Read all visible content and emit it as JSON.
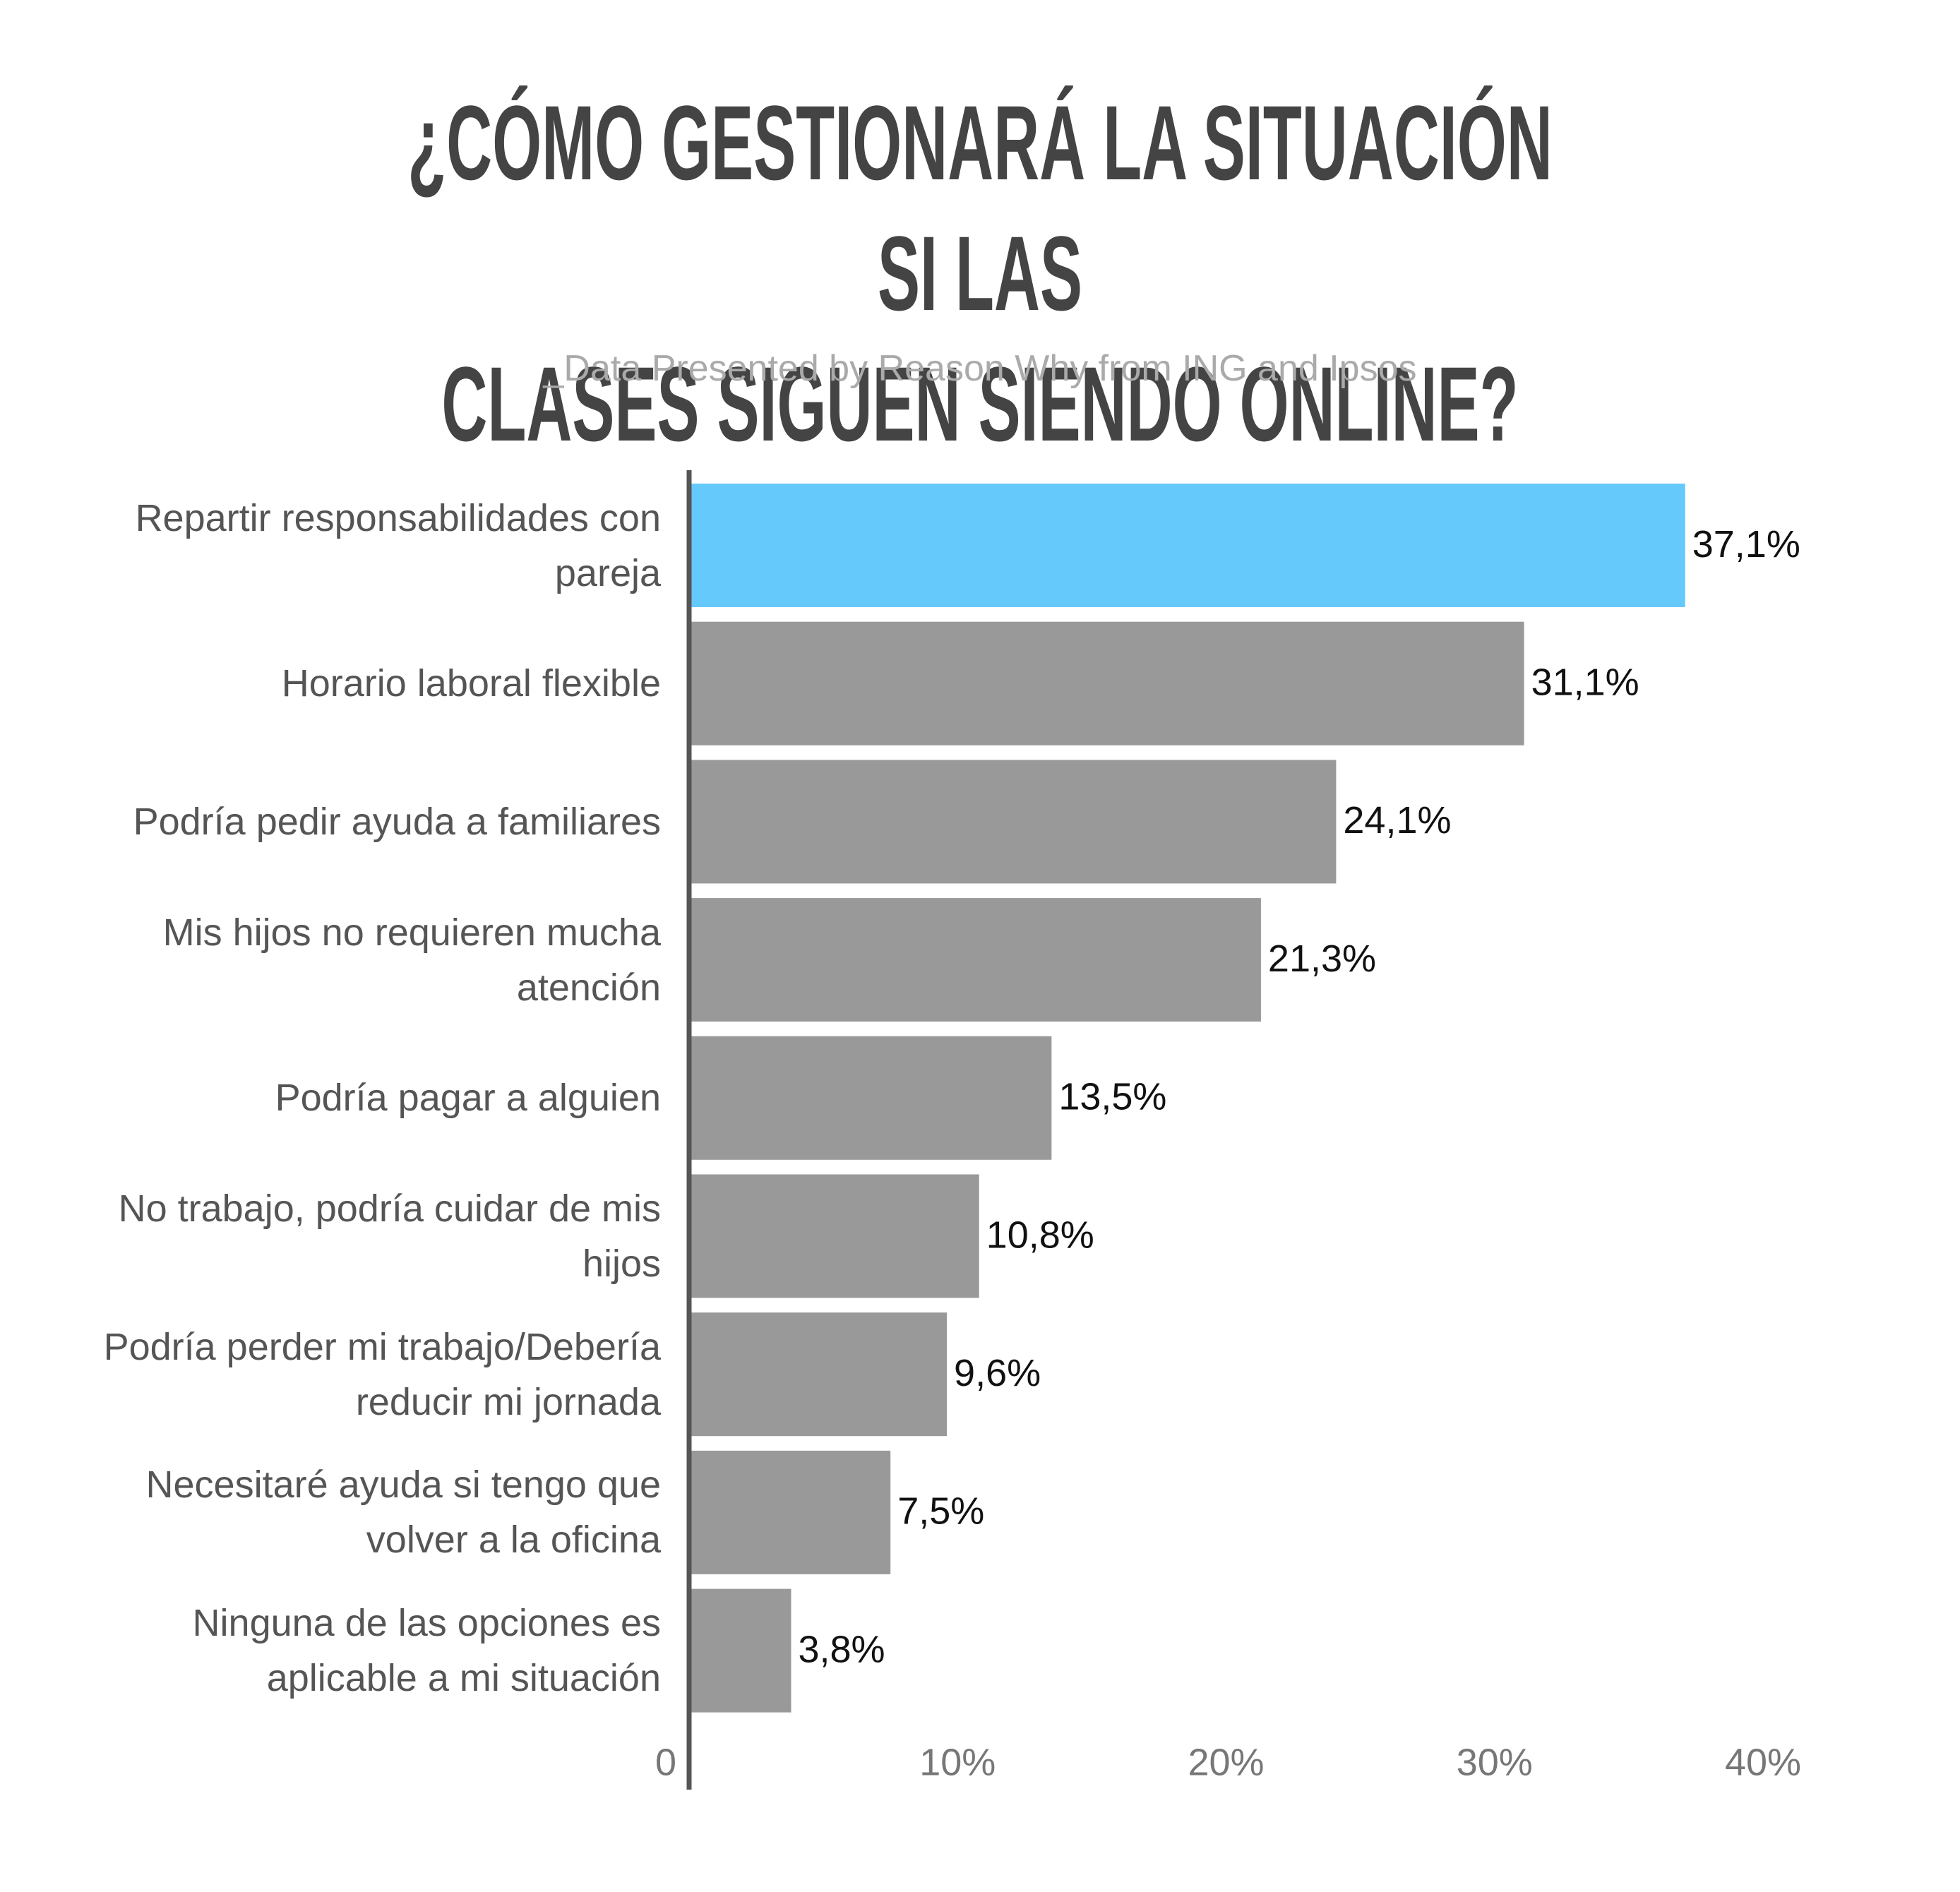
{
  "chart_data": {
    "type": "barh",
    "title": "¿CÓMO GESTIONARÁ LA SITUACIÓN SI LAS\nCLASES SIGUEN SIENDO ONLINE?",
    "subtitle": "_Data Presented by Reason Why from ING and Ipsos",
    "categories": [
      "Repartir responsabilidades con\npareja",
      "Horario laboral flexible",
      "Podría pedir ayuda a familiares",
      "Mis hijos no requieren mucha\natención",
      "Podría pagar a alguien",
      "No trabajo, podría cuidar de mis\nhijos",
      "Podría perder mi trabajo/Debería\nreducir mi jornada",
      "Necesitaré ayuda si tengo que\nvolver a la oficina",
      "Ninguna de las opciones es\naplicable a mi situación"
    ],
    "values": [
      37.1,
      31.1,
      24.1,
      21.3,
      13.5,
      10.8,
      9.6,
      7.5,
      3.8
    ],
    "value_labels": [
      "37,1%",
      "31,1%",
      "24,1%",
      "21,3%",
      "13,5%",
      "10,8%",
      "9,6%",
      "7,5%",
      "3,8%"
    ],
    "colors": [
      "#66c9fc",
      "#999999",
      "#999999",
      "#999999",
      "#999999",
      "#999999",
      "#999999",
      "#999999",
      "#999999"
    ],
    "xlim": [
      0,
      40
    ],
    "xticks": [
      0,
      {
        "value": 10,
        "label": "10%"
      },
      {
        "value": 20,
        "label": "20%"
      },
      {
        "value": 30,
        "label": "30%"
      },
      {
        "value": 40,
        "label": "40%"
      }
    ]
  }
}
